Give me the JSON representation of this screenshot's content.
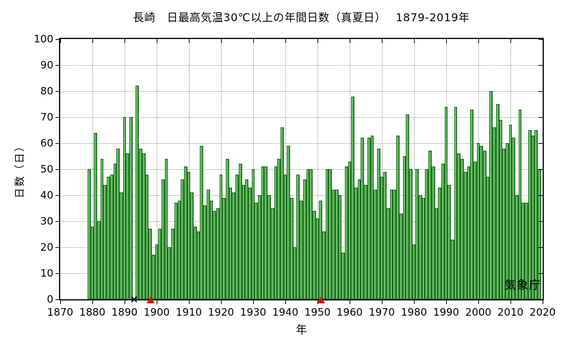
{
  "title": "長崎　日最高気温30℃以上の年間日数（真夏日）　 1879-2019年",
  "watermark": "気象庁",
  "chart_data": {
    "type": "bar",
    "title": "長崎　日最高気温30℃以上の年間日数（真夏日）　 1879-2019年",
    "xlabel": "年",
    "ylabel": "日数（日）",
    "source_label": "気象庁",
    "xlim": [
      1870,
      2020
    ],
    "ylim": [
      0,
      100
    ],
    "x_ticks": [
      1870,
      1880,
      1890,
      1900,
      1910,
      1920,
      1930,
      1940,
      1950,
      1960,
      1970,
      1980,
      1990,
      2000,
      2010,
      2020
    ],
    "y_ticks": [
      0,
      10,
      20,
      30,
      40,
      50,
      60,
      70,
      80,
      90,
      100
    ],
    "grid": "dotted horizontal and vertical",
    "legend": "none",
    "bar_color": "#46a546",
    "bar_edge_color": "#1a6b1a",
    "bar_highlight_color": "#8ed88e",
    "marker_color_triangle": "#dd1111",
    "x_start": 1879,
    "x_end": 2019,
    "missing_years": [
      1893
    ],
    "markers": [
      {
        "year": 1893,
        "symbol": "×",
        "color": "#000000"
      },
      {
        "year": 1898,
        "symbol": "▲",
        "color": "#dd1111"
      },
      {
        "year": 1951,
        "symbol": "▲",
        "color": "#dd1111"
      }
    ],
    "values": [
      50,
      28,
      64,
      30,
      54,
      44,
      47,
      48,
      52,
      58,
      41,
      70,
      56,
      70,
      null,
      82,
      58,
      56,
      48,
      27,
      17,
      21,
      27,
      46,
      54,
      20,
      27,
      37,
      38,
      46,
      51,
      49,
      41,
      28,
      26,
      59,
      36,
      42,
      38,
      34,
      35,
      48,
      39,
      54,
      43,
      41,
      48,
      52,
      44,
      46,
      43,
      50,
      37,
      40,
      51,
      51,
      40,
      35,
      51,
      54,
      66,
      48,
      59,
      39,
      20,
      48,
      38,
      46,
      50,
      50,
      34,
      31,
      38,
      26,
      50,
      50,
      42,
      42,
      40,
      18,
      51,
      53,
      78,
      43,
      46,
      62,
      44,
      62,
      63,
      42,
      58,
      47,
      49,
      35,
      42,
      42,
      63,
      33,
      55,
      71,
      50,
      21,
      50,
      40,
      39,
      50,
      57,
      51,
      35,
      43,
      52,
      74,
      44,
      23,
      74,
      56,
      54,
      49,
      51,
      73,
      53,
      60,
      59,
      57,
      47,
      80,
      66,
      75,
      69,
      58,
      60,
      67,
      62,
      40,
      73,
      37,
      37,
      65,
      63,
      65,
      50
    ]
  }
}
